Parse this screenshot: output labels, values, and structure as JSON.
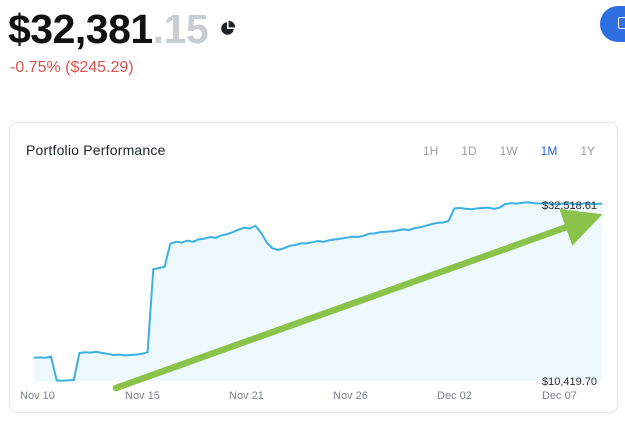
{
  "balance": {
    "main": "$32,381",
    "cents": ".15"
  },
  "change": "-0.75% ($245.29)",
  "card": {
    "title": "Portfolio Performance",
    "ranges": [
      {
        "label": "1H",
        "active": false
      },
      {
        "label": "1D",
        "active": false
      },
      {
        "label": "1W",
        "active": false
      },
      {
        "label": "1M",
        "active": true
      },
      {
        "label": "1Y",
        "active": false
      }
    ]
  },
  "icons": {
    "pie": "pie-chart-icon",
    "corner": "document-icon"
  },
  "colors": {
    "line": "#3cb0e0",
    "fill": "#eef9fd",
    "arrow": "#8bc34a",
    "negative": "#d9534f",
    "accent": "#2b5fd9"
  },
  "chart_data": {
    "type": "line",
    "x_ticks": [
      "Nov 10",
      "Nov 15",
      "Nov 21",
      "Nov 26",
      "Dec 02",
      "Dec 07"
    ],
    "max_label": "$32,518.61",
    "min_label": "$10,419.70",
    "ylim": [
      10419.7,
      32518.61
    ],
    "x": [
      0,
      1,
      2,
      3,
      4,
      5,
      6,
      7,
      8,
      9,
      10,
      11,
      12,
      13,
      14,
      15,
      16,
      17,
      18,
      19,
      20,
      21,
      22,
      23,
      24,
      25,
      26,
      27,
      28,
      29,
      30,
      31,
      32,
      33,
      34,
      35,
      36,
      37,
      38,
      39,
      40,
      41,
      42,
      43,
      44,
      45,
      46,
      47,
      48,
      49,
      50,
      51,
      52,
      53,
      54,
      55,
      56,
      57,
      58,
      59,
      60,
      61,
      62,
      63,
      64,
      65,
      66,
      67,
      68,
      69,
      70,
      71,
      72,
      73,
      74,
      75,
      76,
      77,
      78,
      79,
      80,
      81,
      82,
      83,
      84,
      85,
      86,
      87,
      88,
      89,
      90,
      91,
      92,
      93,
      94,
      95,
      96,
      97,
      98,
      99,
      100
    ],
    "values": [
      13300,
      13350,
      13300,
      13450,
      10500,
      10450,
      10500,
      10550,
      13900,
      14000,
      13950,
      14050,
      13900,
      13800,
      13650,
      13700,
      13600,
      13650,
      13700,
      13800,
      14000,
      24300,
      24450,
      24600,
      27450,
      27700,
      27600,
      27850,
      27700,
      28000,
      28100,
      28300,
      28200,
      28500,
      28650,
      28900,
      29200,
      29450,
      29350,
      29700,
      28800,
      27600,
      26900,
      26700,
      26900,
      27200,
      27300,
      27500,
      27500,
      27650,
      27800,
      27700,
      27900,
      28000,
      28100,
      28200,
      28350,
      28300,
      28450,
      28700,
      28750,
      28900,
      28950,
      29000,
      29100,
      29250,
      29150,
      29400,
      29500,
      29700,
      29900,
      30050,
      30100,
      30300,
      31850,
      31900,
      31800,
      31750,
      31850,
      31900,
      31950,
      31800,
      31950,
      32400,
      32500,
      32450,
      32550,
      32600,
      32500,
      32450,
      32550,
      32400,
      32350,
      32450,
      32500,
      32400,
      32350,
      32518,
      32450,
      32400,
      32450
    ]
  }
}
